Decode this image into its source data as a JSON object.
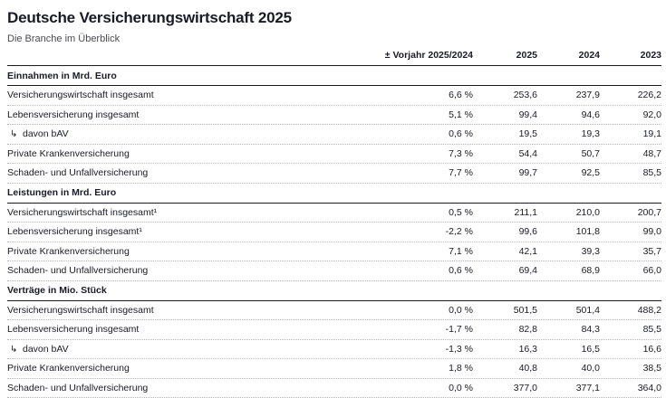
{
  "colors": {
    "text": "#1a1a26",
    "subtitle_text": "#494953",
    "solid_rule": "#1a1a26",
    "dotted_rule": "#b5b5b5",
    "background": "#ffffff"
  },
  "chart_data": {
    "type": "table",
    "title": "Deutsche Versicherungswirtschaft 2025",
    "subtitle": "Die Branche im Überblick",
    "columns": [
      "± Vorjahr 2025/2024",
      "2025",
      "2024",
      "2023"
    ],
    "indent_glyph": "↳",
    "sections": [
      {
        "heading": "Einnahmen in Mrd. Euro",
        "rows": [
          {
            "label": "Versicherungswirtschaft insgesamt",
            "indent": false,
            "values": [
              "6,6 %",
              "253,6",
              "237,9",
              "226,2"
            ]
          },
          {
            "label": "Lebensversicherung insgesamt",
            "indent": false,
            "values": [
              "5,1 %",
              "99,4",
              "94,6",
              "92,0"
            ]
          },
          {
            "label": "davon bAV",
            "indent": true,
            "values": [
              "0,6 %",
              "19,5",
              "19,3",
              "19,1"
            ]
          },
          {
            "label": "Private Krankenversicherung",
            "indent": false,
            "values": [
              "7,3 %",
              "54,4",
              "50,7",
              "48,7"
            ]
          },
          {
            "label": "Schaden- und Unfallversicherung",
            "indent": false,
            "values": [
              "7,7 %",
              "99,7",
              "92,5",
              "85,5"
            ]
          }
        ]
      },
      {
        "heading": "Leistungen in Mrd. Euro",
        "rows": [
          {
            "label": "Versicherungswirtschaft insgesamt¹",
            "indent": false,
            "values": [
              "0,5 %",
              "211,1",
              "210,0",
              "200,7"
            ]
          },
          {
            "label": "Lebensversicherung insgesamt¹",
            "indent": false,
            "values": [
              "-2,2 %",
              "99,6",
              "101,8",
              "99,0"
            ]
          },
          {
            "label": "Private Krankenversicherung",
            "indent": false,
            "values": [
              "7,1 %",
              "42,1",
              "39,3",
              "35,7"
            ]
          },
          {
            "label": "Schaden- und Unfallversicherung",
            "indent": false,
            "values": [
              "0,6 %",
              "69,4",
              "68,9",
              "66,0"
            ]
          }
        ]
      },
      {
        "heading": "Verträge in Mio. Stück",
        "rows": [
          {
            "label": "Versicherungswirtschaft insgesamt",
            "indent": false,
            "values": [
              "0,0 %",
              "501,5",
              "501,4",
              "488,2"
            ]
          },
          {
            "label": "Lebensversicherung insgesamt",
            "indent": false,
            "values": [
              "-1,7 %",
              "82,8",
              "84,3",
              "85,5"
            ]
          },
          {
            "label": "davon bAV",
            "indent": true,
            "values": [
              "-1,3 %",
              "16,3",
              "16,5",
              "16,6"
            ]
          },
          {
            "label": "Private Krankenversicherung",
            "indent": false,
            "values": [
              "1,8 %",
              "40,8",
              "40,0",
              "38,5"
            ]
          },
          {
            "label": "Schaden- und Unfallversicherung",
            "indent": false,
            "values": [
              "0,0 %",
              "377,0",
              "377,1",
              "364,0"
            ]
          }
        ]
      }
    ]
  }
}
